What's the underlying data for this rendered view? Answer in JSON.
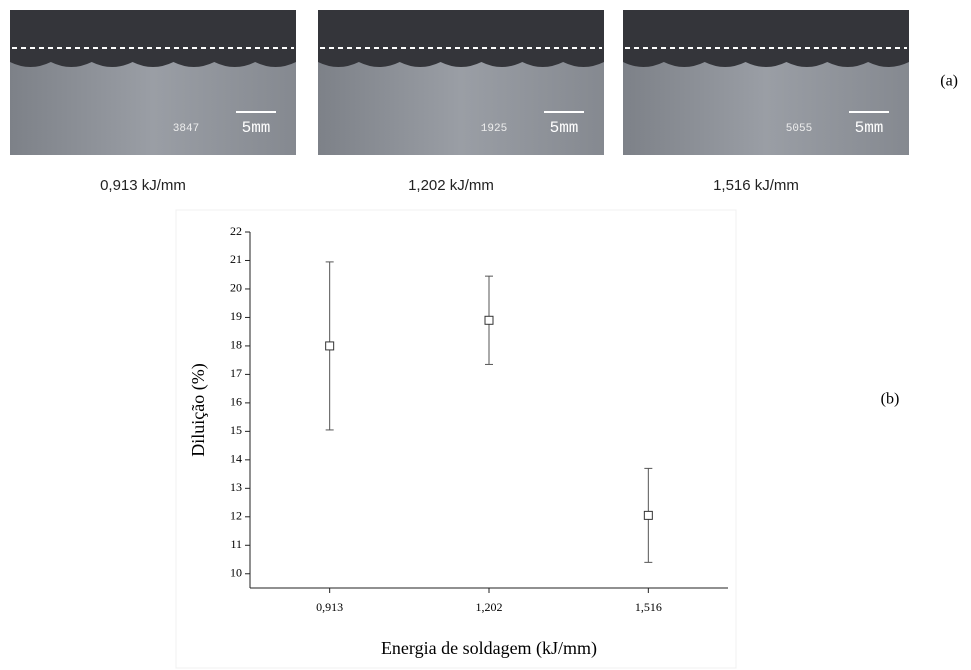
{
  "panel_a": {
    "label": "(a)",
    "photos": [
      {
        "id": "3847",
        "scale": "5mm",
        "caption": "0,913 kJ/mm"
      },
      {
        "id": "1925",
        "scale": "5mm",
        "caption": "1,202 kJ/mm"
      },
      {
        "id": "5055",
        "scale": "5mm",
        "caption": "1,516 kJ/mm"
      }
    ]
  },
  "chart_data": {
    "type": "errorbar",
    "label": "(b)",
    "x_label": "Energia de soldagem (kJ/mm)",
    "y_label": "Diluição (%)",
    "categories": [
      "0,913",
      "1,202",
      "1,516"
    ],
    "values": [
      18.0,
      18.9,
      12.05
    ],
    "errors": [
      2.95,
      1.55,
      1.65
    ],
    "ylim": [
      9.5,
      22
    ],
    "yticks": [
      10,
      11,
      12,
      13,
      14,
      15,
      16,
      17,
      18,
      19,
      20,
      21,
      22
    ],
    "color": "#555555"
  }
}
